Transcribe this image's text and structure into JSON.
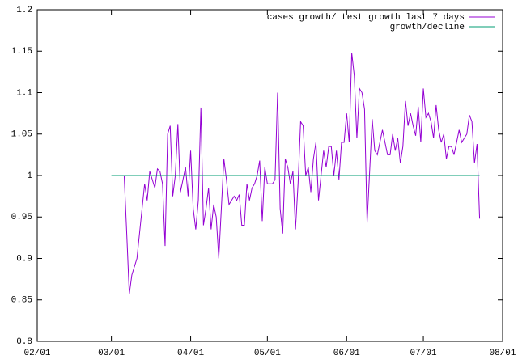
{
  "chart_data": {
    "type": "line",
    "xlim": [
      "02/01",
      "08/01"
    ],
    "xticks": [
      "02/01",
      "03/01",
      "04/01",
      "05/01",
      "06/01",
      "07/01",
      "08/01"
    ],
    "ylim": [
      0.8,
      1.2
    ],
    "yticks": [
      0.8,
      0.85,
      0.9,
      0.95,
      1,
      1.05,
      1.1,
      1.15,
      1.2
    ],
    "legend": "upper right",
    "series": [
      {
        "name": "cases growth/ test growth last 7 days",
        "color": "#9400d3",
        "x": [
          "03/06",
          "03/07",
          "03/08",
          "03/09",
          "03/10",
          "03/11",
          "03/12",
          "03/13",
          "03/14",
          "03/15",
          "03/16",
          "03/17",
          "03/18",
          "03/19",
          "03/20",
          "03/21",
          "03/22",
          "03/23",
          "03/24",
          "03/25",
          "03/26",
          "03/27",
          "03/28",
          "03/29",
          "03/30",
          "03/31",
          "04/01",
          "04/02",
          "04/03",
          "04/04",
          "04/05",
          "04/06",
          "04/07",
          "04/08",
          "04/09",
          "04/10",
          "04/11",
          "04/12",
          "04/13",
          "04/14",
          "04/15",
          "04/16",
          "04/17",
          "04/18",
          "04/19",
          "04/20",
          "04/21",
          "04/22",
          "04/23",
          "04/24",
          "04/25",
          "04/26",
          "04/27",
          "04/28",
          "04/29",
          "04/30",
          "05/01",
          "05/02",
          "05/03",
          "05/04",
          "05/05",
          "05/06",
          "05/07",
          "05/08",
          "05/09",
          "05/10",
          "05/11",
          "05/12",
          "05/13",
          "05/14",
          "05/15",
          "05/16",
          "05/17",
          "05/18",
          "05/19",
          "05/20",
          "05/21",
          "05/22",
          "05/23",
          "05/24",
          "05/25",
          "05/26",
          "05/27",
          "05/28",
          "05/29",
          "05/30",
          "05/31",
          "06/01",
          "06/02",
          "06/03",
          "06/04",
          "06/05",
          "06/06",
          "06/07",
          "06/08",
          "06/09",
          "06/10",
          "06/11",
          "06/12",
          "06/13",
          "06/14",
          "06/15",
          "06/16",
          "06/17",
          "06/18",
          "06/19",
          "06/20",
          "06/21",
          "06/22",
          "06/23",
          "06/24",
          "06/25",
          "06/26",
          "06/27",
          "06/28",
          "06/29",
          "06/30",
          "07/01",
          "07/02",
          "07/03",
          "07/04",
          "07/05",
          "07/06",
          "07/07",
          "07/08",
          "07/09",
          "07/10",
          "07/11",
          "07/12",
          "07/13",
          "07/14",
          "07/15",
          "07/16",
          "07/17",
          "07/18",
          "07/19",
          "07/20",
          "07/21",
          "07/22",
          "07/23"
        ],
        "values": [
          1.0,
          0.93,
          0.857,
          0.88,
          0.89,
          0.9,
          0.93,
          0.96,
          0.99,
          0.97,
          1.005,
          0.995,
          0.985,
          1.008,
          1.005,
          0.99,
          0.915,
          1.05,
          1.06,
          0.975,
          1.0,
          1.062,
          0.98,
          0.995,
          1.01,
          0.975,
          1.03,
          0.96,
          0.935,
          0.97,
          1.082,
          0.94,
          0.96,
          0.985,
          0.935,
          0.965,
          0.95,
          0.9,
          0.96,
          1.02,
          0.995,
          0.965,
          0.97,
          0.975,
          0.97,
          0.977,
          0.94,
          0.94,
          0.99,
          0.97,
          0.985,
          0.99,
          1.0,
          1.018,
          0.945,
          1.01,
          0.99,
          0.99,
          0.99,
          0.995,
          1.1,
          0.96,
          0.93,
          1.02,
          1.01,
          0.99,
          1.005,
          0.935,
          0.99,
          1.065,
          1.06,
          1.0,
          1.01,
          0.98,
          1.02,
          1.04,
          0.97,
          1.0,
          1.03,
          1.01,
          1.035,
          1.035,
          1.0,
          1.03,
          0.995,
          1.04,
          1.04,
          1.075,
          1.04,
          1.148,
          1.12,
          1.045,
          1.105,
          1.1,
          1.08,
          0.943,
          1.005,
          1.068,
          1.03,
          1.025,
          1.04,
          1.055,
          1.04,
          1.025,
          1.025,
          1.05,
          1.03,
          1.045,
          1.015,
          1.035,
          1.09,
          1.06,
          1.075,
          1.06,
          1.048,
          1.083,
          1.04,
          1.105,
          1.07,
          1.075,
          1.065,
          1.045,
          1.085,
          1.055,
          1.04,
          1.05,
          1.02,
          1.035,
          1.035,
          1.025,
          1.04,
          1.055,
          1.04,
          1.045,
          1.05,
          1.073,
          1.065,
          1.015,
          1.038,
          0.948
        ]
      },
      {
        "name": "growth/decline",
        "color": "#009e73",
        "x": [
          "03/01",
          "07/23"
        ],
        "values": [
          1,
          1
        ]
      }
    ]
  }
}
